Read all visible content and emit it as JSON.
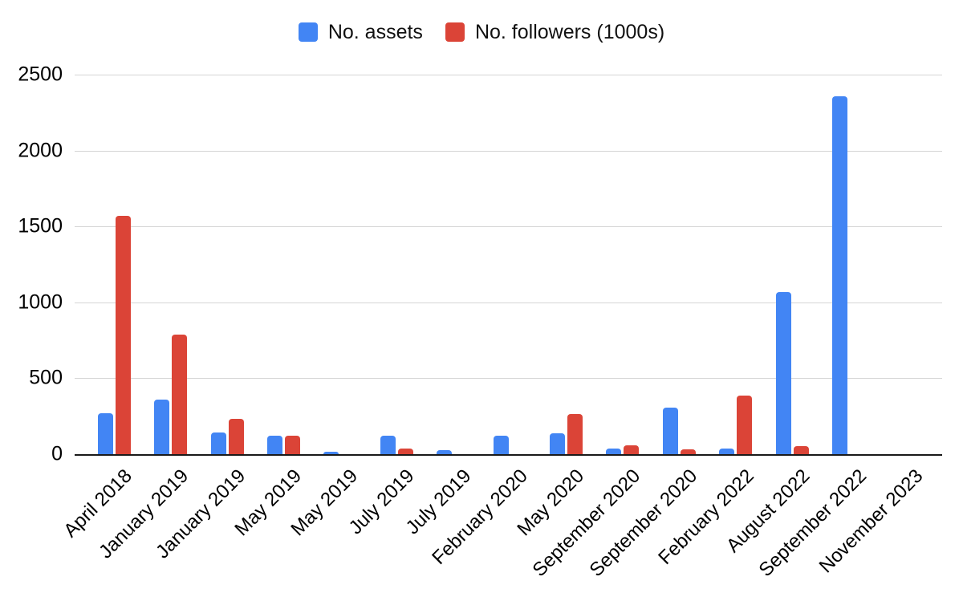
{
  "chart_data": {
    "type": "bar",
    "categories": [
      "April 2018",
      "January 2019",
      "January 2019",
      "May 2019",
      "May 2019",
      "July 2019",
      "July 2019",
      "February 2020",
      "May 2020",
      "September 2020",
      "September 2020",
      "February 2022",
      "August 2022",
      "September 2022",
      "November 2023"
    ],
    "series": [
      {
        "name": "No. assets",
        "color": "#4285f4",
        "values": [
          270,
          360,
          145,
          120,
          15,
          120,
          25,
          120,
          135,
          35,
          305,
          35,
          1070,
          2355,
          0
        ]
      },
      {
        "name": "No. followers (1000s)",
        "color": "#db4437",
        "values": [
          1570,
          785,
          230,
          120,
          0,
          35,
          0,
          0,
          265,
          60,
          30,
          385,
          55,
          0,
          0
        ]
      }
    ],
    "ylim": [
      0,
      2500
    ],
    "yticks": [
      0,
      500,
      1000,
      1500,
      2000,
      2500
    ],
    "grid": true,
    "legend_position": "top",
    "x_label_rotation": -45,
    "axis_color": "#1a1a1a",
    "gridline_color": "#d5d5d5"
  }
}
